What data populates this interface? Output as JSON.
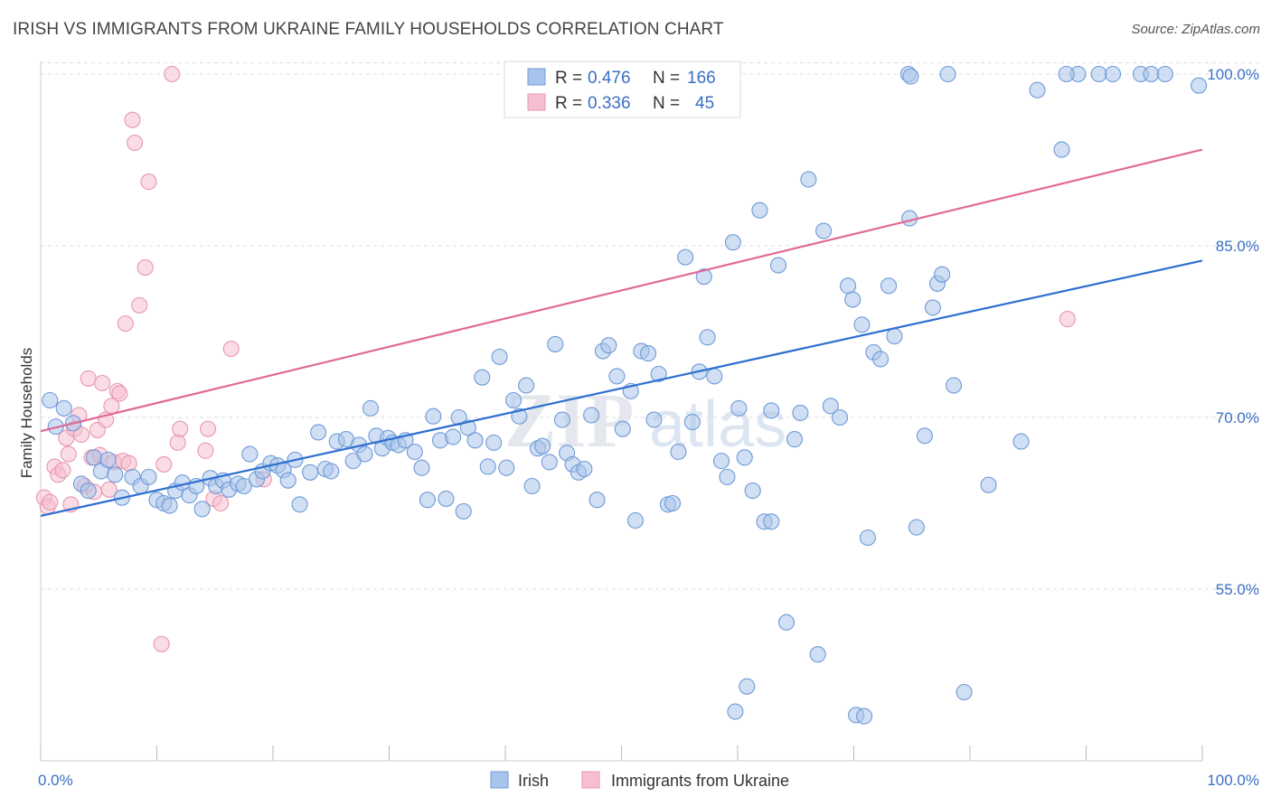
{
  "title": "IRISH VS IMMIGRANTS FROM UKRAINE FAMILY HOUSEHOLDS CORRELATION CHART",
  "source": "Source: ZipAtlas.com",
  "watermark": {
    "zip": "ZIP",
    "atlas": "atlas"
  },
  "colors": {
    "irish_fill": "#a9c4ea",
    "irish_stroke": "#6f9ad8",
    "irish_line": "#2e6fd1",
    "ukraine_fill": "#f5bfd0",
    "ukraine_stroke": "#e897b1",
    "ukraine_line": "#e06a94",
    "tick_label": "#3a6fc4",
    "grid": "#dddddd"
  },
  "stats": {
    "r_label": "R =",
    "n_label": "N =",
    "irish": {
      "r": "0.476",
      "n": "166"
    },
    "ukraine": {
      "r": "0.336",
      "n": "45"
    }
  },
  "chart_data": {
    "type": "scatter",
    "ylabel": "Family Households",
    "xlim": [
      0,
      100
    ],
    "ylim": [
      40,
      101.5
    ],
    "x_tick_labels": [
      "0.0%",
      "100.0%"
    ],
    "y_ticks": [
      {
        "value": 55,
        "label": "55.0%"
      },
      {
        "value": 70,
        "label": "70.0%"
      },
      {
        "value": 85,
        "label": "85.0%"
      },
      {
        "value": 100,
        "label": "100.0%"
      }
    ],
    "legend": [
      "Irish",
      "Immigrants from Ukraine"
    ],
    "series": [
      {
        "name": "Irish",
        "trend": [
          [
            0,
            61.4
          ],
          [
            100,
            83.7
          ]
        ],
        "points": [
          [
            0.8,
            71.5
          ],
          [
            1.3,
            69.2
          ],
          [
            2.0,
            70.8
          ],
          [
            2.8,
            69.5
          ],
          [
            3.5,
            64.2
          ],
          [
            4.1,
            63.6
          ],
          [
            4.6,
            66.5
          ],
          [
            5.2,
            65.3
          ],
          [
            5.8,
            66.3
          ],
          [
            6.4,
            65.0
          ],
          [
            7.0,
            63.0
          ],
          [
            7.9,
            64.8
          ],
          [
            8.6,
            64.0
          ],
          [
            9.3,
            64.8
          ],
          [
            10.0,
            62.8
          ],
          [
            10.6,
            62.5
          ],
          [
            11.1,
            62.3
          ],
          [
            11.6,
            63.6
          ],
          [
            12.2,
            64.3
          ],
          [
            12.8,
            63.2
          ],
          [
            13.4,
            64.0
          ],
          [
            13.9,
            62.0
          ],
          [
            14.6,
            64.7
          ],
          [
            15.1,
            64.0
          ],
          [
            15.7,
            64.5
          ],
          [
            16.2,
            63.7
          ],
          [
            17.0,
            64.2
          ],
          [
            17.5,
            64.0
          ],
          [
            18.0,
            66.8
          ],
          [
            18.6,
            64.6
          ],
          [
            19.1,
            65.3
          ],
          [
            19.8,
            66.0
          ],
          [
            20.4,
            65.8
          ],
          [
            20.9,
            65.4
          ],
          [
            21.3,
            64.5
          ],
          [
            21.9,
            66.3
          ],
          [
            22.3,
            62.4
          ],
          [
            23.2,
            65.2
          ],
          [
            23.9,
            68.7
          ],
          [
            24.5,
            65.5
          ],
          [
            25.0,
            65.3
          ],
          [
            25.5,
            67.9
          ],
          [
            26.3,
            68.1
          ],
          [
            26.9,
            66.2
          ],
          [
            27.4,
            67.6
          ],
          [
            27.9,
            66.8
          ],
          [
            28.4,
            70.8
          ],
          [
            28.9,
            68.4
          ],
          [
            29.4,
            67.3
          ],
          [
            29.9,
            68.2
          ],
          [
            30.3,
            67.8
          ],
          [
            30.8,
            67.6
          ],
          [
            31.4,
            68.0
          ],
          [
            32.2,
            67.0
          ],
          [
            32.8,
            65.6
          ],
          [
            33.3,
            62.8
          ],
          [
            33.8,
            70.1
          ],
          [
            34.4,
            68.0
          ],
          [
            34.9,
            62.9
          ],
          [
            35.5,
            68.3
          ],
          [
            36.0,
            70.0
          ],
          [
            36.4,
            61.8
          ],
          [
            36.8,
            69.1
          ],
          [
            37.4,
            68.0
          ],
          [
            38.0,
            73.5
          ],
          [
            38.5,
            65.7
          ],
          [
            39.0,
            67.8
          ],
          [
            39.5,
            75.3
          ],
          [
            40.1,
            65.6
          ],
          [
            40.7,
            71.5
          ],
          [
            41.2,
            70.1
          ],
          [
            41.8,
            72.8
          ],
          [
            42.3,
            64.0
          ],
          [
            42.8,
            67.3
          ],
          [
            43.2,
            67.5
          ],
          [
            43.8,
            66.1
          ],
          [
            44.3,
            76.4
          ],
          [
            44.9,
            69.8
          ],
          [
            45.3,
            66.9
          ],
          [
            45.8,
            65.9
          ],
          [
            46.3,
            65.2
          ],
          [
            46.8,
            65.5
          ],
          [
            47.4,
            70.2
          ],
          [
            47.9,
            62.8
          ],
          [
            48.4,
            75.8
          ],
          [
            48.9,
            76.3
          ],
          [
            49.6,
            73.6
          ],
          [
            50.1,
            69.0
          ],
          [
            50.8,
            72.3
          ],
          [
            51.2,
            61.0
          ],
          [
            51.7,
            75.8
          ],
          [
            52.3,
            75.6
          ],
          [
            52.8,
            69.8
          ],
          [
            53.2,
            73.8
          ],
          [
            54.0,
            62.4
          ],
          [
            54.4,
            62.5
          ],
          [
            54.9,
            67.0
          ],
          [
            55.5,
            84.0
          ],
          [
            56.1,
            69.6
          ],
          [
            56.7,
            74.0
          ],
          [
            57.1,
            82.3
          ],
          [
            57.4,
            77.0
          ],
          [
            58.0,
            73.6
          ],
          [
            58.6,
            66.2
          ],
          [
            59.1,
            64.8
          ],
          [
            59.6,
            85.3
          ],
          [
            60.1,
            70.8
          ],
          [
            60.6,
            66.5
          ],
          [
            61.3,
            63.6
          ],
          [
            61.9,
            88.1
          ],
          [
            62.3,
            60.9
          ],
          [
            62.9,
            70.6
          ],
          [
            63.5,
            83.3
          ],
          [
            64.2,
            52.1
          ],
          [
            64.9,
            68.1
          ],
          [
            65.4,
            70.4
          ],
          [
            66.1,
            90.8
          ],
          [
            66.9,
            49.3
          ],
          [
            67.4,
            86.3
          ],
          [
            68.0,
            71.0
          ],
          [
            68.8,
            70.0
          ],
          [
            69.5,
            81.5
          ],
          [
            69.9,
            80.3
          ],
          [
            70.7,
            78.1
          ],
          [
            71.2,
            59.5
          ],
          [
            71.7,
            75.7
          ],
          [
            72.3,
            75.1
          ],
          [
            73.0,
            81.5
          ],
          [
            73.5,
            77.1
          ],
          [
            74.8,
            87.4
          ],
          [
            75.4,
            60.4
          ],
          [
            76.1,
            68.4
          ],
          [
            76.8,
            79.6
          ],
          [
            77.2,
            81.7
          ],
          [
            77.6,
            82.5
          ],
          [
            78.6,
            72.8
          ],
          [
            79.5,
            46.0
          ],
          [
            81.6,
            64.1
          ],
          [
            84.4,
            67.9
          ],
          [
            85.8,
            98.6
          ],
          [
            87.9,
            93.4
          ],
          [
            89.3,
            100.0
          ],
          [
            91.1,
            100.0
          ],
          [
            92.3,
            100.0
          ],
          [
            94.7,
            100.0
          ],
          [
            95.6,
            100.0
          ],
          [
            96.8,
            100.0
          ],
          [
            99.7,
            99.0
          ],
          [
            58.3,
            100.0
          ],
          [
            59.8,
            44.3
          ],
          [
            70.2,
            44.0
          ],
          [
            70.9,
            43.9
          ],
          [
            78.1,
            100.0
          ],
          [
            74.7,
            100.0
          ],
          [
            74.9,
            99.8
          ],
          [
            88.3,
            100.0
          ],
          [
            60.8,
            46.5
          ],
          [
            62.9,
            60.9
          ]
        ]
      },
      {
        "name": "Immigrants from Ukraine",
        "trend": [
          [
            0,
            68.8
          ],
          [
            100,
            93.4
          ]
        ],
        "points": [
          [
            0.3,
            63.0
          ],
          [
            0.6,
            62.2
          ],
          [
            0.8,
            62.6
          ],
          [
            1.2,
            65.7
          ],
          [
            1.5,
            65.0
          ],
          [
            1.9,
            65.4
          ],
          [
            2.2,
            68.2
          ],
          [
            2.4,
            66.8
          ],
          [
            2.6,
            62.4
          ],
          [
            2.9,
            69.0
          ],
          [
            3.3,
            70.2
          ],
          [
            3.5,
            68.5
          ],
          [
            3.8,
            64.0
          ],
          [
            4.1,
            73.4
          ],
          [
            4.4,
            66.5
          ],
          [
            4.6,
            63.5
          ],
          [
            4.9,
            68.9
          ],
          [
            5.1,
            66.7
          ],
          [
            5.3,
            73.0
          ],
          [
            5.6,
            69.8
          ],
          [
            5.9,
            63.7
          ],
          [
            6.1,
            71.0
          ],
          [
            6.3,
            66.1
          ],
          [
            6.6,
            72.3
          ],
          [
            6.8,
            72.1
          ],
          [
            7.1,
            66.2
          ],
          [
            7.3,
            78.2
          ],
          [
            7.6,
            66.0
          ],
          [
            7.9,
            96.0
          ],
          [
            8.1,
            94.0
          ],
          [
            8.5,
            79.8
          ],
          [
            9.0,
            83.1
          ],
          [
            9.3,
            90.6
          ],
          [
            10.4,
            50.2
          ],
          [
            10.6,
            65.9
          ],
          [
            11.3,
            100.0
          ],
          [
            11.8,
            67.8
          ],
          [
            12.0,
            69.0
          ],
          [
            14.2,
            67.1
          ],
          [
            14.4,
            69.0
          ],
          [
            14.9,
            62.9
          ],
          [
            15.5,
            62.5
          ],
          [
            16.4,
            76.0
          ],
          [
            19.2,
            64.6
          ],
          [
            88.4,
            78.6
          ]
        ]
      }
    ]
  }
}
